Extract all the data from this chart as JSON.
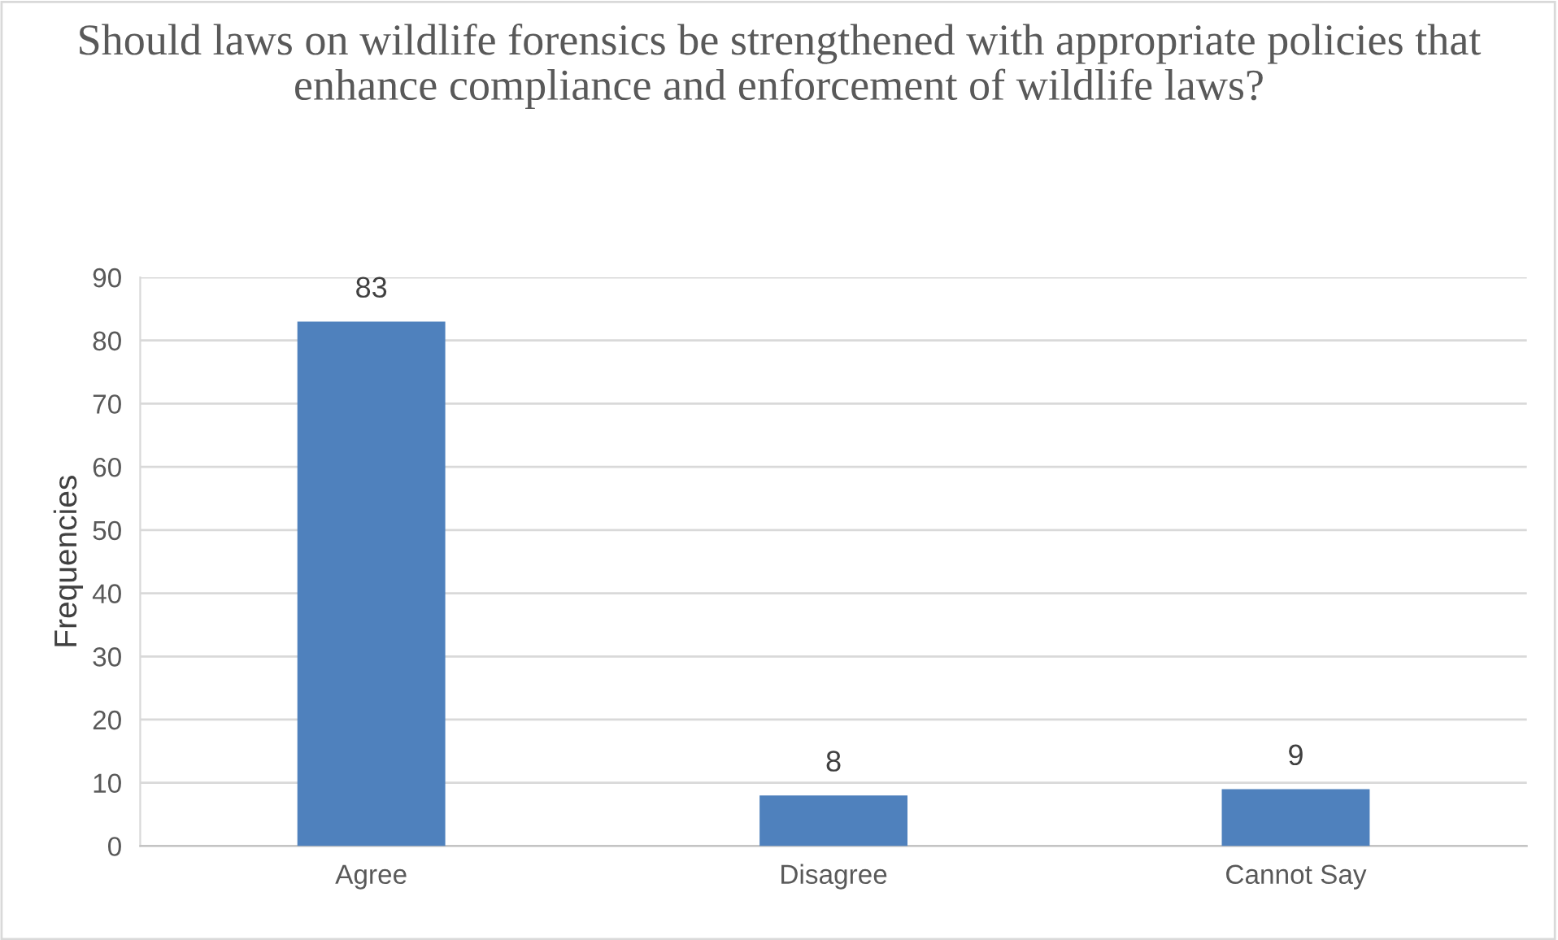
{
  "chart_data": {
    "type": "bar",
    "title": "Should laws on wildlife forensics be strengthened with appropriate policies that enhance compliance and enforcement of wildlife laws?",
    "ylabel": "Frequencies",
    "categories": [
      "Agree",
      "Disagree",
      "Cannot Say"
    ],
    "values": [
      83,
      8,
      9
    ],
    "color": "#4f81bd",
    "ylim": [
      0,
      90
    ],
    "yticks": [
      0,
      10,
      20,
      30,
      40,
      50,
      60,
      70,
      80,
      90
    ],
    "grid": "y",
    "data_labels": true
  }
}
